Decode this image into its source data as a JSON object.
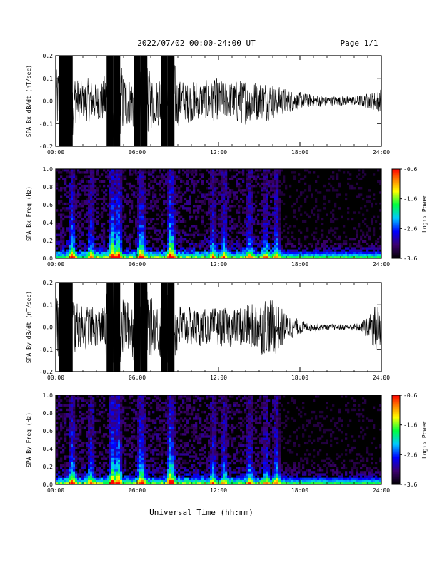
{
  "header": {
    "title": "2022/07/02  00:00-24:00 UT",
    "page": "Page 1/1"
  },
  "footer": {
    "xlabel": "Universal Time (hh:mm)"
  },
  "chart_data": [
    {
      "type": "line",
      "ylabel": "SPA Bx dB/dt (nT/sec)",
      "xlabel": "",
      "x_ticks": [
        "00:00",
        "06:00",
        "12:00",
        "18:00",
        "24:00"
      ],
      "y_ticks": [
        "0.2",
        "0.1",
        "0.0",
        "-0.1",
        "-0.2"
      ],
      "xlim_hours": [
        0,
        24
      ],
      "ylim": [
        -0.2,
        0.2
      ],
      "series": [
        {
          "hours": [
            0,
            0.5,
            1,
            1.5,
            2,
            2.5,
            3,
            3.5,
            4,
            4.5,
            5,
            5.5,
            6,
            6.5,
            7,
            7.5,
            8,
            8.5,
            9,
            9.5,
            10,
            10.5,
            11,
            11.5,
            12,
            12.5,
            13,
            13.5,
            14,
            14.5,
            15,
            15.5,
            16,
            16.5,
            17,
            17.5,
            18,
            18.5,
            19,
            19.5,
            20,
            20.5,
            21,
            21.5,
            22,
            22.5,
            23,
            23.5,
            24
          ],
          "amplitude": [
            0.12,
            0.2,
            0.2,
            0.1,
            0.08,
            0.09,
            0.07,
            0.09,
            0.2,
            0.2,
            0.12,
            0.09,
            0.2,
            0.2,
            0.11,
            0.09,
            0.2,
            0.2,
            0.1,
            0.08,
            0.09,
            0.08,
            0.08,
            0.09,
            0.09,
            0.08,
            0.08,
            0.09,
            0.09,
            0.09,
            0.08,
            0.08,
            0.07,
            0.06,
            0.05,
            0.04,
            0.035,
            0.03,
            0.025,
            0.025,
            0.02,
            0.02,
            0.02,
            0.02,
            0.02,
            0.025,
            0.03,
            0.04,
            0.05
          ]
        }
      ]
    },
    {
      "type": "heatmap",
      "ylabel": "SPA Bx Freq (Hz)",
      "xlabel": "",
      "x_ticks": [
        "00:00",
        "06:00",
        "12:00",
        "18:00",
        "24:00"
      ],
      "y_ticks": [
        "1.0",
        "0.8",
        "0.6",
        "0.4",
        "0.2",
        "0.0"
      ],
      "xlim_hours": [
        0,
        24
      ],
      "ylim": [
        0,
        1
      ],
      "colorbar": {
        "label": "Log₁₀ Power",
        "ticks": [
          "-0.6",
          "-1.6",
          "-2.6",
          "-3.6"
        ],
        "range": [
          -3.6,
          -0.6
        ]
      },
      "bursts_hours": [
        1.2,
        2.6,
        4.2,
        4.6,
        6.3,
        8.5,
        11.6,
        12.4,
        14.3,
        15.5,
        16.3
      ],
      "bursts_strength": [
        0.7,
        0.5,
        0.85,
        0.9,
        0.8,
        1.0,
        0.5,
        0.45,
        0.45,
        0.45,
        0.55
      ]
    },
    {
      "type": "line",
      "ylabel": "SPA By dB/dt (nT/sec)",
      "xlabel": "",
      "x_ticks": [
        "00:00",
        "06:00",
        "12:00",
        "18:00",
        "24:00"
      ],
      "y_ticks": [
        "0.2",
        "0.1",
        "0.0",
        "-0.1",
        "-0.2"
      ],
      "xlim_hours": [
        0,
        24
      ],
      "ylim": [
        -0.2,
        0.2
      ],
      "series": [
        {
          "hours": [
            0,
            0.5,
            1,
            1.5,
            2,
            2.5,
            3,
            3.5,
            4,
            4.5,
            5,
            5.5,
            6,
            6.5,
            7,
            7.5,
            8,
            8.5,
            9,
            9.5,
            10,
            10.5,
            11,
            11.5,
            12,
            12.5,
            13,
            13.5,
            14,
            14.5,
            15,
            15.5,
            16,
            16.5,
            17,
            17.5,
            18,
            18.5,
            19,
            19.5,
            20,
            20.5,
            21,
            21.5,
            22,
            22.5,
            23,
            23.5,
            24
          ],
          "amplitude": [
            0.12,
            0.2,
            0.2,
            0.1,
            0.09,
            0.09,
            0.08,
            0.09,
            0.2,
            0.2,
            0.13,
            0.1,
            0.2,
            0.2,
            0.12,
            0.09,
            0.2,
            0.2,
            0.11,
            0.08,
            0.08,
            0.08,
            0.07,
            0.07,
            0.08,
            0.08,
            0.08,
            0.09,
            0.1,
            0.1,
            0.11,
            0.12,
            0.12,
            0.1,
            0.06,
            0.04,
            0.03,
            0.02,
            0.015,
            0.015,
            0.012,
            0.012,
            0.012,
            0.012,
            0.015,
            0.02,
            0.05,
            0.1,
            0.12
          ]
        }
      ]
    },
    {
      "type": "heatmap",
      "ylabel": "SPA By Freq (Hz)",
      "xlabel": "",
      "x_ticks": [
        "00:00",
        "06:00",
        "12:00",
        "18:00",
        "24:00"
      ],
      "y_ticks": [
        "1.0",
        "0.8",
        "0.6",
        "0.4",
        "0.2",
        "0.0"
      ],
      "xlim_hours": [
        0,
        24
      ],
      "ylim": [
        0,
        1
      ],
      "colorbar": {
        "label": "Log₁₀ Power",
        "ticks": [
          "-0.6",
          "-1.6",
          "-2.6",
          "-3.6"
        ],
        "range": [
          -3.6,
          -0.6
        ]
      },
      "bursts_hours": [
        1.2,
        2.6,
        4.2,
        4.6,
        6.3,
        8.5,
        11.6,
        12.4,
        14.3,
        15.5,
        16.3
      ],
      "bursts_strength": [
        0.7,
        0.5,
        0.85,
        0.9,
        0.8,
        1.0,
        0.5,
        0.45,
        0.45,
        0.45,
        0.55
      ]
    }
  ]
}
